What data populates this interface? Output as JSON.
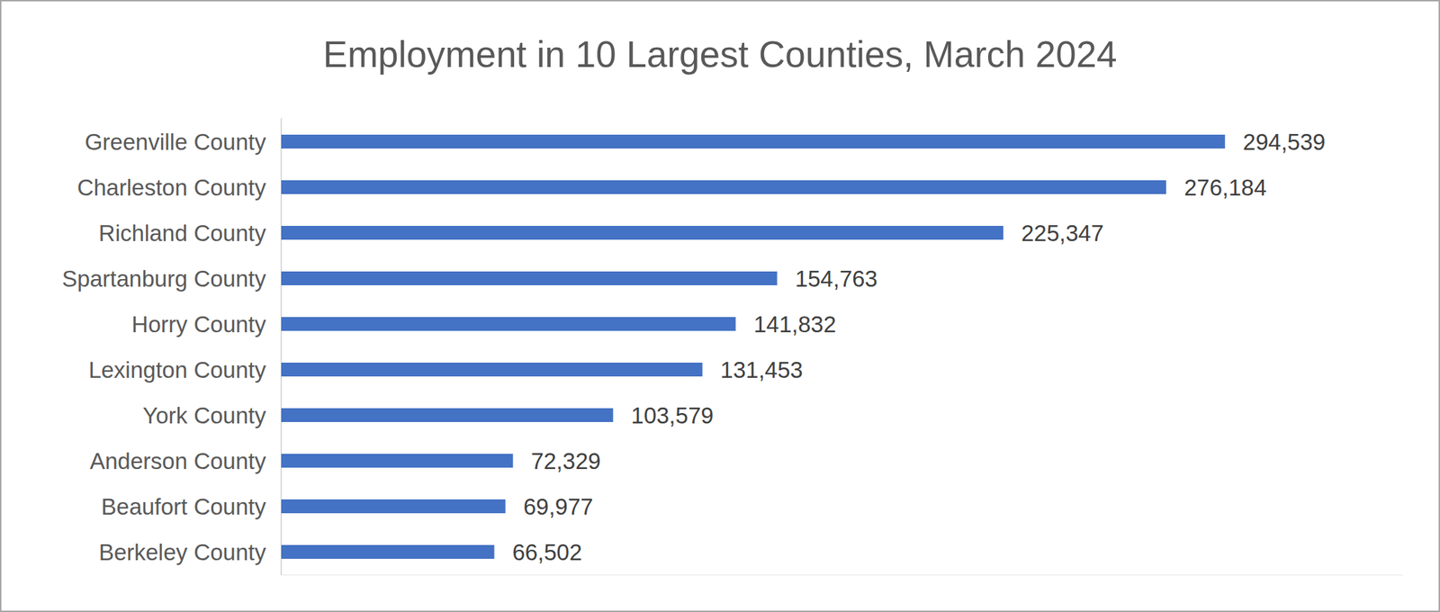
{
  "chart_data": {
    "type": "bar",
    "orientation": "horizontal",
    "title": "Employment in 10 Largest Counties, March 2024",
    "categories": [
      "Greenville County",
      "Charleston County",
      "Richland County",
      "Spartanburg County",
      "Horry County",
      "Lexington County",
      "York County",
      "Anderson County",
      "Beaufort County",
      "Berkeley County"
    ],
    "values": [
      294539,
      276184,
      225347,
      154763,
      141832,
      131453,
      103579,
      72329,
      69977,
      66502
    ],
    "value_labels": [
      "294,539",
      "276,184",
      "225,347",
      "154,763",
      "141,832",
      "131,453",
      "103,579",
      "72,329",
      "69,977",
      "66,502"
    ],
    "color": "#4472c4",
    "xlim": [
      0,
      350000
    ],
    "grid": false,
    "data_labels": true,
    "tick_labels": "y"
  }
}
